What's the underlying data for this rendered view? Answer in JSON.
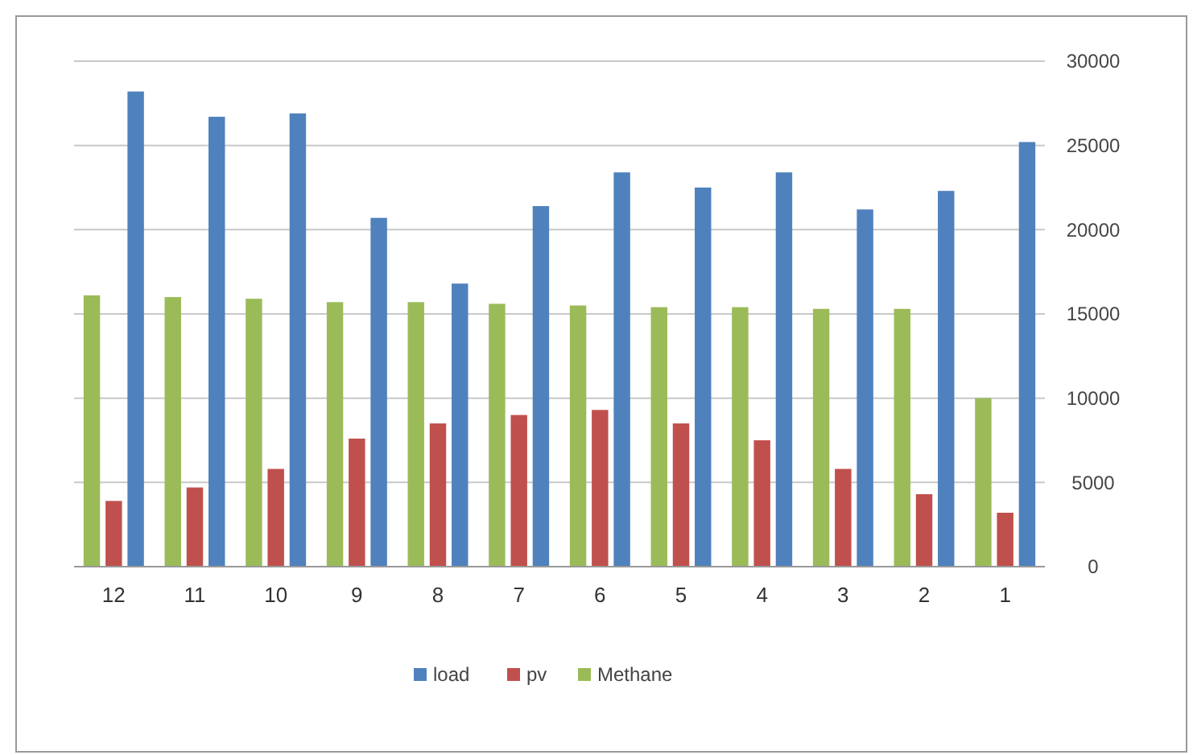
{
  "chart_data": {
    "type": "bar",
    "categories": [
      "12",
      "11",
      "10",
      "9",
      "8",
      "7",
      "6",
      "5",
      "4",
      "3",
      "2",
      "1"
    ],
    "series": [
      {
        "name": "Methane",
        "color": "#9bbb59",
        "values": [
          16100,
          16000,
          15900,
          15700,
          15700,
          15600,
          15500,
          15400,
          15400,
          15300,
          15300,
          10000
        ]
      },
      {
        "name": "pv",
        "color": "#c0504d",
        "values": [
          3900,
          4700,
          5800,
          7600,
          8500,
          9000,
          9300,
          8500,
          7500,
          5800,
          4300,
          3200
        ]
      },
      {
        "name": "load",
        "color": "#4f81bd",
        "values": [
          28200,
          26700,
          26900,
          20700,
          16800,
          21400,
          23400,
          22500,
          23400,
          21200,
          22300,
          25200
        ]
      }
    ],
    "ylim": [
      0,
      30000
    ],
    "yticks": [
      0,
      5000,
      10000,
      15000,
      20000,
      25000,
      30000
    ],
    "grid": "y",
    "legend": "bottom"
  }
}
